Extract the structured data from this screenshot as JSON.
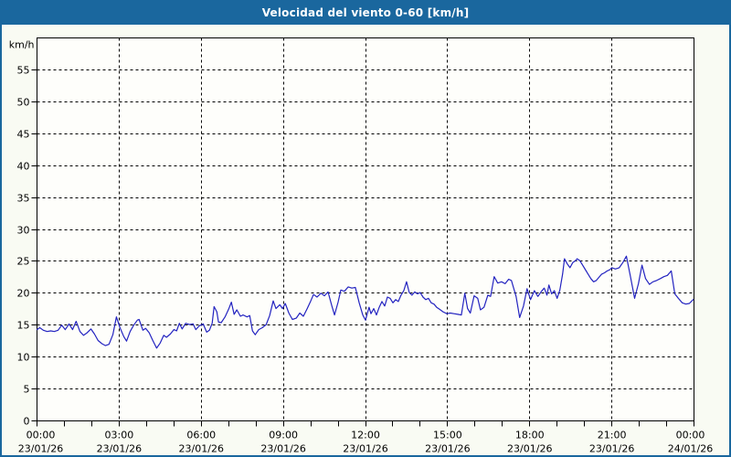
{
  "window": {
    "title": "Velocidad del viento 0-60 [km/h]"
  },
  "colors": {
    "titlebar_bg": "#1a679e",
    "frame_border": "#1a679e",
    "page_bg": "#f9fbf3",
    "plot_bg": "#fefefb",
    "axis": "#000000",
    "grid": "#000000",
    "text": "#000000",
    "line": "#2323c0"
  },
  "chart_data": {
    "type": "line",
    "title": "Velocidad del viento 0-60 [km/h]",
    "ylabel": "km/h",
    "ylim": [
      0,
      60
    ],
    "y_tick_step": 5,
    "y_tick_labels": [
      "0",
      "5",
      "10",
      "15",
      "20",
      "25",
      "30",
      "35",
      "40",
      "45",
      "50",
      "55"
    ],
    "xlim_hours": [
      0,
      24
    ],
    "minor_tick_hours": 1,
    "grid_every_hours": 3,
    "grid_dashed": true,
    "legend": "none",
    "x_ticks": [
      {
        "hours": 0,
        "time": "00:00",
        "date": "23/01/26"
      },
      {
        "hours": 3,
        "time": "03:00",
        "date": "23/01/26"
      },
      {
        "hours": 6,
        "time": "06:00",
        "date": "23/01/26"
      },
      {
        "hours": 9,
        "time": "09:00",
        "date": "23/01/26"
      },
      {
        "hours": 12,
        "time": "12:00",
        "date": "23/01/26"
      },
      {
        "hours": 15,
        "time": "15:00",
        "date": "23/01/26"
      },
      {
        "hours": 18,
        "time": "18:00",
        "date": "23/01/26"
      },
      {
        "hours": 21,
        "time": "21:00",
        "date": "23/01/26"
      },
      {
        "hours": 24,
        "time": "00:00",
        "date": "24/01/26"
      }
    ],
    "series_name": "Velocidad del viento",
    "points": [
      [
        0,
        14.3
      ],
      [
        0.1,
        14.6
      ],
      [
        0.23,
        14.2
      ],
      [
        0.37,
        14
      ],
      [
        0.5,
        14.1
      ],
      [
        0.63,
        14
      ],
      [
        0.77,
        14.2
      ],
      [
        0.9,
        15
      ],
      [
        1.03,
        14.3
      ],
      [
        1.17,
        15.2
      ],
      [
        1.3,
        14.3
      ],
      [
        1.43,
        15.6
      ],
      [
        1.57,
        14
      ],
      [
        1.7,
        13.4
      ],
      [
        1.83,
        13.8
      ],
      [
        1.97,
        14.4
      ],
      [
        2.1,
        13.6
      ],
      [
        2.23,
        12.6
      ],
      [
        2.37,
        12.1
      ],
      [
        2.5,
        11.8
      ],
      [
        2.63,
        12
      ],
      [
        2.77,
        13.5
      ],
      [
        2.9,
        16.3
      ],
      [
        3.03,
        14.6
      ],
      [
        3.17,
        13.2
      ],
      [
        3.27,
        12.5
      ],
      [
        3.4,
        14
      ],
      [
        3.53,
        15
      ],
      [
        3.67,
        15.8
      ],
      [
        3.73,
        15.9
      ],
      [
        3.87,
        14.2
      ],
      [
        3.97,
        14.5
      ],
      [
        4.1,
        13.8
      ],
      [
        4.23,
        12.6
      ],
      [
        4.37,
        11.4
      ],
      [
        4.5,
        12.2
      ],
      [
        4.63,
        13.4
      ],
      [
        4.73,
        13.1
      ],
      [
        4.87,
        13.6
      ],
      [
        5,
        14.3
      ],
      [
        5.1,
        14.1
      ],
      [
        5.2,
        15.3
      ],
      [
        5.3,
        14.4
      ],
      [
        5.43,
        15.3
      ],
      [
        5.57,
        15.1
      ],
      [
        5.7,
        15.2
      ],
      [
        5.8,
        14.3
      ],
      [
        5.93,
        14.9
      ],
      [
        6.07,
        15.2
      ],
      [
        6.2,
        13.9
      ],
      [
        6.3,
        14.2
      ],
      [
        6.4,
        15.3
      ],
      [
        6.47,
        17.9
      ],
      [
        6.57,
        17.1
      ],
      [
        6.63,
        15.5
      ],
      [
        6.73,
        15.4
      ],
      [
        6.87,
        16.3
      ],
      [
        7,
        17.5
      ],
      [
        7.1,
        18.6
      ],
      [
        7.2,
        16.7
      ],
      [
        7.3,
        17.4
      ],
      [
        7.43,
        16.4
      ],
      [
        7.53,
        16.6
      ],
      [
        7.67,
        16.3
      ],
      [
        7.77,
        16.5
      ],
      [
        7.87,
        14.1
      ],
      [
        7.97,
        13.5
      ],
      [
        8.1,
        14.3
      ],
      [
        8.23,
        14.6
      ],
      [
        8.37,
        15.1
      ],
      [
        8.5,
        16.5
      ],
      [
        8.63,
        18.8
      ],
      [
        8.73,
        17.6
      ],
      [
        8.87,
        18.2
      ],
      [
        8.97,
        17.6
      ],
      [
        9.07,
        18.4
      ],
      [
        9.2,
        16.9
      ],
      [
        9.33,
        15.9
      ],
      [
        9.47,
        16.1
      ],
      [
        9.6,
        16.9
      ],
      [
        9.73,
        16.4
      ],
      [
        9.87,
        17.6
      ],
      [
        10,
        18.8
      ],
      [
        10.1,
        19.8
      ],
      [
        10.23,
        19.4
      ],
      [
        10.37,
        20
      ],
      [
        10.5,
        19.6
      ],
      [
        10.63,
        20.2
      ],
      [
        10.77,
        18
      ],
      [
        10.87,
        16.6
      ],
      [
        11,
        18.6
      ],
      [
        11.1,
        20.5
      ],
      [
        11.23,
        20.3
      ],
      [
        11.37,
        21
      ],
      [
        11.5,
        20.8
      ],
      [
        11.63,
        20.9
      ],
      [
        11.77,
        18.5
      ],
      [
        11.9,
        16.6
      ],
      [
        12,
        15.8
      ],
      [
        12.13,
        17.8
      ],
      [
        12.2,
        16.8
      ],
      [
        12.3,
        17.6
      ],
      [
        12.4,
        16.6
      ],
      [
        12.5,
        17.8
      ],
      [
        12.6,
        18.7
      ],
      [
        12.7,
        18
      ],
      [
        12.8,
        19.4
      ],
      [
        12.9,
        19.2
      ],
      [
        13,
        18.5
      ],
      [
        13.1,
        19
      ],
      [
        13.2,
        18.7
      ],
      [
        13.3,
        19.7
      ],
      [
        13.4,
        20.4
      ],
      [
        13.5,
        21.8
      ],
      [
        13.6,
        20.1
      ],
      [
        13.7,
        19.7
      ],
      [
        13.8,
        20.2
      ],
      [
        13.9,
        19.9
      ],
      [
        14,
        20.1
      ],
      [
        14.1,
        19.4
      ],
      [
        14.2,
        19
      ],
      [
        14.3,
        19.2
      ],
      [
        14.4,
        18.5
      ],
      [
        14.5,
        18.3
      ],
      [
        14.6,
        17.8
      ],
      [
        14.7,
        17.5
      ],
      [
        14.83,
        17.1
      ],
      [
        14.97,
        16.8
      ],
      [
        15.1,
        16.9
      ],
      [
        15.23,
        16.8
      ],
      [
        15.37,
        16.7
      ],
      [
        15.5,
        16.6
      ],
      [
        15.63,
        20
      ],
      [
        15.73,
        17.6
      ],
      [
        15.83,
        16.9
      ],
      [
        15.97,
        19.6
      ],
      [
        16.1,
        19.2
      ],
      [
        16.2,
        17.4
      ],
      [
        16.33,
        17.8
      ],
      [
        16.47,
        19.7
      ],
      [
        16.57,
        19.5
      ],
      [
        16.7,
        22.6
      ],
      [
        16.83,
        21.6
      ],
      [
        16.97,
        21.8
      ],
      [
        17.1,
        21.5
      ],
      [
        17.23,
        22.2
      ],
      [
        17.33,
        22
      ],
      [
        17.5,
        19.5
      ],
      [
        17.63,
        16.2
      ],
      [
        17.77,
        18
      ],
      [
        17.9,
        20.7
      ],
      [
        18.03,
        19
      ],
      [
        18.17,
        20.4
      ],
      [
        18.3,
        19.5
      ],
      [
        18.43,
        20.3
      ],
      [
        18.53,
        20.8
      ],
      [
        18.63,
        19.7
      ],
      [
        18.7,
        21.3
      ],
      [
        18.8,
        19.9
      ],
      [
        18.9,
        20.4
      ],
      [
        19,
        19.2
      ],
      [
        19.1,
        20.5
      ],
      [
        19.2,
        23
      ],
      [
        19.27,
        25.4
      ],
      [
        19.37,
        24.6
      ],
      [
        19.47,
        24
      ],
      [
        19.57,
        24.8
      ],
      [
        19.67,
        25.1
      ],
      [
        19.73,
        25.4
      ],
      [
        19.83,
        25.1
      ],
      [
        19.93,
        24.4
      ],
      [
        20.03,
        23.7
      ],
      [
        20.13,
        23
      ],
      [
        20.23,
        22.3
      ],
      [
        20.33,
        21.8
      ],
      [
        20.43,
        22
      ],
      [
        20.53,
        22.5
      ],
      [
        20.63,
        23
      ],
      [
        20.73,
        23.2
      ],
      [
        20.83,
        23.5
      ],
      [
        20.93,
        23.7
      ],
      [
        21,
        24
      ],
      [
        21.13,
        23.8
      ],
      [
        21.27,
        24
      ],
      [
        21.4,
        24.8
      ],
      [
        21.53,
        25.8
      ],
      [
        21.67,
        22.8
      ],
      [
        21.83,
        19.2
      ],
      [
        21.97,
        21.5
      ],
      [
        22.1,
        24.4
      ],
      [
        22.23,
        22.3
      ],
      [
        22.37,
        21.4
      ],
      [
        22.5,
        21.8
      ],
      [
        22.63,
        22
      ],
      [
        22.77,
        22.3
      ],
      [
        22.9,
        22.6
      ],
      [
        23.03,
        22.8
      ],
      [
        23.17,
        23.5
      ],
      [
        23.3,
        19.9
      ],
      [
        23.43,
        19.2
      ],
      [
        23.57,
        18.5
      ],
      [
        23.7,
        18.3
      ],
      [
        23.83,
        18.4
      ],
      [
        23.97,
        19
      ]
    ]
  }
}
